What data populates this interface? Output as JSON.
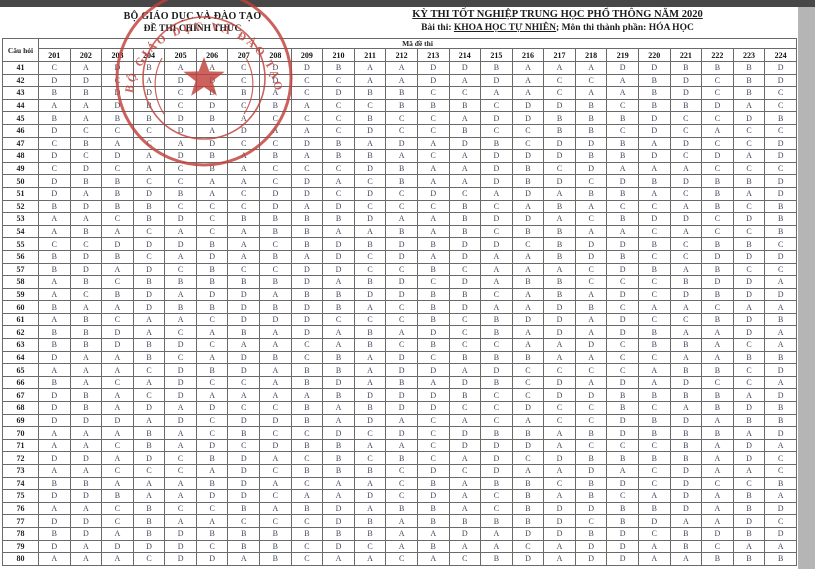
{
  "page": {
    "left_header": {
      "line1": "BỘ GIÁO DỤC VÀ ĐÀO TẠO",
      "line2": "ĐỀ THI CHÍNH THỨC"
    },
    "right_header": {
      "title": "KỲ THI TỐT NGHIỆP TRUNG HỌC PHỔ THÔNG NĂM 2020",
      "exam_label": "Bài thi: ",
      "exam_name": "KHOA HỌC TỰ NHIÊN",
      "component_label": "; Môn thi thành phần: ",
      "component_name": "HÓA HỌC"
    },
    "stamp": {
      "arc_text": "BỘ GIÁO DỤC VÀ ĐÀO TẠO",
      "color": "#c1403a"
    }
  },
  "table": {
    "question_col_label": "Câu hỏi",
    "code_span_label": "Mã đề thi",
    "codes": [
      "201",
      "202",
      "203",
      "204",
      "205",
      "206",
      "207",
      "208",
      "209",
      "210",
      "211",
      "212",
      "213",
      "214",
      "215",
      "216",
      "217",
      "218",
      "219",
      "220",
      "221",
      "222",
      "223",
      "224"
    ],
    "rows": [
      {
        "q": "41",
        "a": "CADBAACDDBAADDBAAADDBBBD"
      },
      {
        "q": "42",
        "a": "DDCADDCDCCAADADACCABDCBD"
      },
      {
        "q": "43",
        "a": "BBDDCDBACDBBCCAACAABDCBC"
      },
      {
        "q": "44",
        "a": "AADBCDCBACCBBBCDDBCBBDAC"
      },
      {
        "q": "45",
        "a": "BABBDBACCCBCCADDBBBDCCDB"
      },
      {
        "q": "46",
        "a": "DCCCDADAACDCCBCCBBCDCACC"
      },
      {
        "q": "47",
        "a": "CBACADCCDBADADBCDDBADCCD"
      },
      {
        "q": "48",
        "a": "DCDADBABABBACADDDBBDCDAD"
      },
      {
        "q": "49",
        "a": "CDCACBACCCDBAADBCDAAACCC"
      },
      {
        "q": "50",
        "a": "DBBCCAACDACBAADBDCDBDBBD"
      },
      {
        "q": "51",
        "a": "DABDBACDDCDCDCADABBACBAD"
      },
      {
        "q": "52",
        "a": "BDBBCCCDADCCCBCABACCABCB"
      },
      {
        "q": "53",
        "a": "AACBDCBBBBDAABDDACBDDCDB"
      },
      {
        "q": "54",
        "a": "ABACACABBAABABCBBAACACCB"
      },
      {
        "q": "55",
        "a": "CCDDDBACBDBDBDDCBDDBCBBC"
      },
      {
        "q": "56",
        "a": "BDBCADABADCDADAABDBCCDDD"
      },
      {
        "q": "57",
        "a": "BDADCBCCDDCCBCAAACDBABCC"
      },
      {
        "q": "58",
        "a": "ABCBBBBBDABDCDABBCCCBDDA"
      },
      {
        "q": "59",
        "a": "ACBDADDABBDDBBCABADCDBDD"
      },
      {
        "q": "60",
        "a": "BAADBBDBDBACBDAADBCAACAA"
      },
      {
        "q": "61",
        "a": "ABCAACDDDCCCBCBDDADCCBDB"
      },
      {
        "q": "62",
        "a": "BBDACABADABADCBADADBAADA"
      },
      {
        "q": "63",
        "a": "BBDBDCAACABCBCCAADCBBACA"
      },
      {
        "q": "64",
        "a": "DAABCADBCBADCBBBAACCAABB"
      },
      {
        "q": "65",
        "a": "AAACDBDABBADDADCCCCABBCD"
      },
      {
        "q": "66",
        "a": "BACADCCABDABADBCDADADCCA"
      },
      {
        "q": "67",
        "a": "DBACDAAAABDDDBCCDDBBBBAD"
      },
      {
        "q": "68",
        "a": "DBADADCCBABDDCCDCCBCABDB"
      },
      {
        "q": "69",
        "a": "DDDADCDDBADACACACCDBDABB"
      },
      {
        "q": "70",
        "a": "AAABACBCCDCDCDBBABDBBBAD"
      },
      {
        "q": "71",
        "a": "AACBADCDBBAACDDDACCCBADA"
      },
      {
        "q": "72",
        "a": "DDADCBDACBCBCADCDBBBBADC"
      },
      {
        "q": "73",
        "a": "AACCCADCBBBCDCDAADACDAAC"
      },
      {
        "q": "74",
        "a": "BBAAABDACAACBABBCBDCDCCB"
      },
      {
        "q": "75",
        "a": "DDBAADDCAADCDACBABCADABA"
      },
      {
        "q": "76",
        "a": "AACBCCBABDABBACBDDBBDABD"
      },
      {
        "q": "77",
        "a": "DDCBAACCCDBABBBBDCBDAADC"
      },
      {
        "q": "78",
        "a": "BDABDBBBBBBAADADDBDCBDBD"
      },
      {
        "q": "79",
        "a": "DADDDCBBCDCABAACADDABCAA"
      },
      {
        "q": "80",
        "a": "AAACDDABCAACACBDADDAABBB"
      }
    ]
  },
  "colors": {
    "scanner_top_bar": "#474747",
    "scanner_side_bar": "#b5b5b5",
    "stamp_red": "#c1403a",
    "answer_ink": "#3f4658"
  }
}
